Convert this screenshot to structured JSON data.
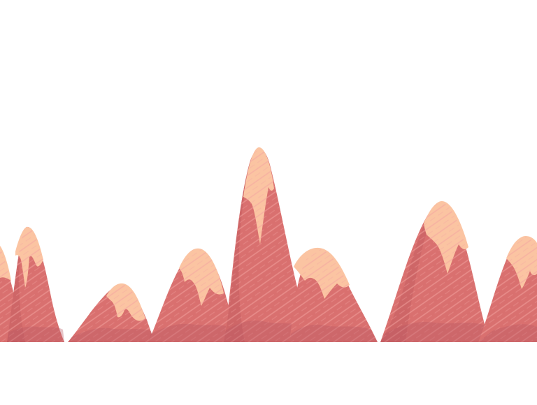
{
  "scene": {
    "subject": "mountain-range-illustration",
    "mountain_count": 8,
    "colors": {
      "background": "#ffffff",
      "rock": "#d9706f",
      "rock_shadow": "#c75f63",
      "rock_dark": "#b85560",
      "snow_cap": "#fbc4a2",
      "snow_shadow": "#f0a58f",
      "hatch": "#f4a4a0"
    }
  }
}
